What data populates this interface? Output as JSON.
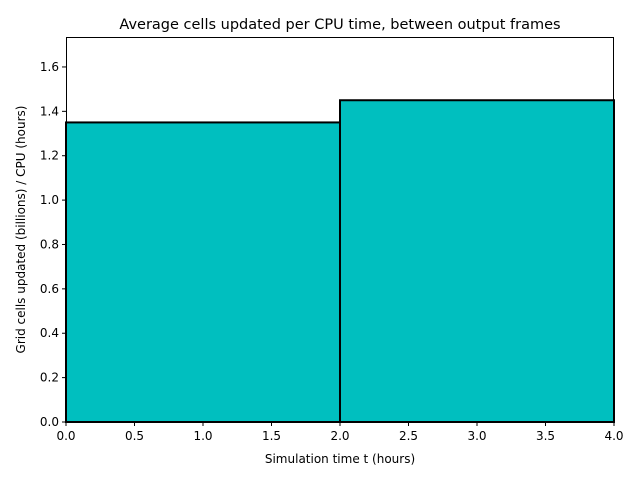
{
  "chart_data": {
    "type": "bar",
    "title": "Average cells updated per CPU time, between output frames",
    "xlabel": "Simulation time t (hours)",
    "ylabel": "Grid cells updated (billions) / CPU (hours)",
    "xlim": [
      0.0,
      4.0
    ],
    "ylim": [
      0.0,
      1.735
    ],
    "x_ticks": [
      "0.0",
      "0.5",
      "1.0",
      "1.5",
      "2.0",
      "2.5",
      "3.0",
      "3.5",
      "4.0"
    ],
    "y_ticks": [
      "0.0",
      "0.2",
      "0.4",
      "0.6",
      "0.8",
      "1.0",
      "1.2",
      "1.4",
      "1.6"
    ],
    "bars": [
      {
        "x_start": 0.0,
        "x_end": 2.0,
        "value": 1.35
      },
      {
        "x_start": 2.0,
        "x_end": 4.0,
        "value": 1.45
      }
    ],
    "grid": false,
    "bar_color": "#00bfbf",
    "edge_color": "#000000"
  }
}
